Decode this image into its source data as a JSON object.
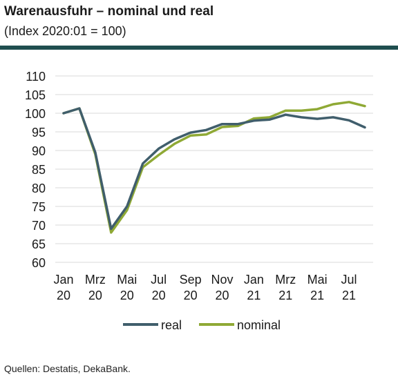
{
  "title": "Warenausfuhr – nominal und real",
  "subtitle": "(Index 2020:01 = 100)",
  "source": "Quellen: Destatis, DekaBank.",
  "colors": {
    "real": "#405e6c",
    "nominal": "#8fa935",
    "rule": "#1f4e4f",
    "grid": "#d9d9d9"
  },
  "chart_data": {
    "type": "line",
    "title": "Warenausfuhr – nominal und real",
    "subtitle": "(Index 2020:01 = 100)",
    "ylim": [
      60,
      110
    ],
    "yticks": [
      110,
      105,
      100,
      95,
      90,
      85,
      80,
      75,
      70,
      65,
      60
    ],
    "grid": true,
    "legend_position": "bottom",
    "x": [
      "2020-01",
      "2020-02",
      "2020-03",
      "2020-04",
      "2020-05",
      "2020-06",
      "2020-07",
      "2020-08",
      "2020-09",
      "2020-10",
      "2020-11",
      "2020-12",
      "2021-01",
      "2021-02",
      "2021-03",
      "2021-04",
      "2021-05",
      "2021-06",
      "2021-07",
      "2021-08"
    ],
    "xtick_labels": [
      {
        "month": "Jan",
        "year": "20",
        "index": 0
      },
      {
        "month": "Mrz",
        "year": "20",
        "index": 2
      },
      {
        "month": "Mai",
        "year": "20",
        "index": 4
      },
      {
        "month": "Jul",
        "year": "20",
        "index": 6
      },
      {
        "month": "Sep",
        "year": "20",
        "index": 8
      },
      {
        "month": "Nov",
        "year": "20",
        "index": 10
      },
      {
        "month": "Jan",
        "year": "21",
        "index": 12
      },
      {
        "month": "Mrz",
        "year": "21",
        "index": 14
      },
      {
        "month": "Mai",
        "year": "21",
        "index": 16
      },
      {
        "month": "Jul",
        "year": "21",
        "index": 18
      }
    ],
    "series": [
      {
        "name": "real",
        "key": "real",
        "values": [
          100,
          101.3,
          89.5,
          69,
          75,
          86.5,
          90.5,
          93,
          94.8,
          95.5,
          97.1,
          97.1,
          98,
          98.3,
          99.6,
          98.9,
          98.5,
          98.9,
          98.1,
          96.2
        ]
      },
      {
        "name": "nominal",
        "key": "nominal",
        "values": [
          100,
          101.3,
          89,
          68,
          74,
          85.5,
          88.8,
          91.8,
          94,
          94.3,
          96.3,
          96.6,
          98.6,
          98.9,
          100.7,
          100.7,
          101.1,
          102.4,
          103,
          101.9
        ]
      }
    ]
  }
}
